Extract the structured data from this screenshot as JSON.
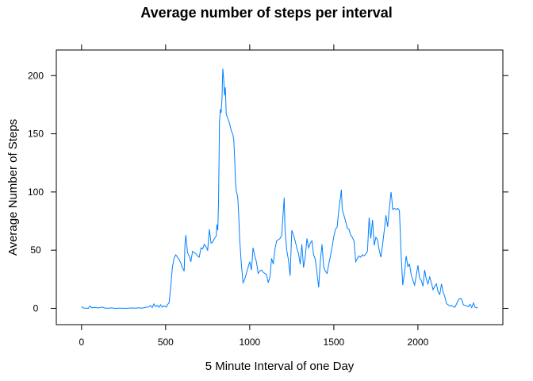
{
  "chart_data": {
    "type": "line",
    "title": "Average number of steps per interval",
    "xlabel": "5 Minute Interval of one Day",
    "ylabel": "Average Number of Steps",
    "xlim": [
      -150,
      2505
    ],
    "ylim": [
      -14,
      222
    ],
    "x_ticks": [
      0,
      500,
      1000,
      1500,
      2000
    ],
    "y_ticks": [
      0,
      50,
      100,
      150,
      200
    ],
    "x_tick_labels": [
      "0",
      "500",
      "1000",
      "1500",
      "2000"
    ],
    "y_tick_labels": [
      "0",
      "50",
      "100",
      "150",
      "200"
    ],
    "grid": false,
    "legend": "none",
    "line_color": "#0080ff",
    "series": [
      {
        "x": [
          0,
          10,
          20,
          30,
          40,
          50,
          60,
          80,
          100,
          120,
          140,
          160,
          180,
          200,
          220,
          240,
          260,
          280,
          300,
          320,
          340,
          360,
          380,
          400,
          410,
          420,
          430,
          440,
          450,
          460,
          470,
          480,
          490,
          500,
          505,
          510,
          520,
          530,
          540,
          550,
          560,
          570,
          580,
          590,
          600,
          610,
          615,
          620,
          630,
          640,
          650,
          660,
          670,
          680,
          690,
          700,
          710,
          720,
          730,
          740,
          750,
          760,
          770,
          780,
          790,
          800,
          805,
          810,
          815,
          820,
          825,
          830,
          835,
          840,
          845,
          850,
          855,
          860,
          870,
          880,
          890,
          900,
          905,
          910,
          915,
          920,
          925,
          930,
          935,
          940,
          950,
          960,
          970,
          980,
          990,
          1000,
          1010,
          1020,
          1030,
          1040,
          1050,
          1060,
          1070,
          1080,
          1090,
          1100,
          1110,
          1120,
          1130,
          1140,
          1150,
          1160,
          1170,
          1180,
          1190,
          1200,
          1205,
          1210,
          1220,
          1230,
          1240,
          1250,
          1260,
          1270,
          1280,
          1290,
          1300,
          1310,
          1320,
          1330,
          1340,
          1350,
          1360,
          1370,
          1380,
          1390,
          1400,
          1410,
          1420,
          1430,
          1440,
          1450,
          1460,
          1470,
          1480,
          1490,
          1500,
          1510,
          1520,
          1530,
          1540,
          1545,
          1550,
          1560,
          1570,
          1580,
          1590,
          1600,
          1610,
          1620,
          1630,
          1640,
          1650,
          1660,
          1670,
          1680,
          1690,
          1700,
          1710,
          1720,
          1730,
          1740,
          1750,
          1760,
          1770,
          1780,
          1790,
          1800,
          1810,
          1820,
          1830,
          1840,
          1845,
          1850,
          1860,
          1870,
          1880,
          1890,
          1900,
          1910,
          1920,
          1930,
          1940,
          1950,
          1960,
          1970,
          1980,
          1990,
          2000,
          2010,
          2020,
          2030,
          2040,
          2050,
          2060,
          2070,
          2080,
          2090,
          2100,
          2110,
          2120,
          2130,
          2140,
          2150,
          2160,
          2170,
          2180,
          2190,
          2200,
          2210,
          2220,
          2230,
          2240,
          2250,
          2260,
          2270,
          2280,
          2290,
          2300,
          2310,
          2320,
          2330,
          2340,
          2350,
          2355
        ],
        "y": [
          1.7,
          0.3,
          0.1,
          0.2,
          0.0,
          2.1,
          0.5,
          0.8,
          0.3,
          1.1,
          0.2,
          0.1,
          0.4,
          0.0,
          0.1,
          0.2,
          0.0,
          0.1,
          0.3,
          0.1,
          0.5,
          0.2,
          0.8,
          1.2,
          2.5,
          0.7,
          3.8,
          1.5,
          2.6,
          0.9,
          3.1,
          1.0,
          2.2,
          1.5,
          1.0,
          3.2,
          4.5,
          18.0,
          35.0,
          43.0,
          46.0,
          44.0,
          42.0,
          39.0,
          35.0,
          32.0,
          55.0,
          63.0,
          48.0,
          45.0,
          40.0,
          49.0,
          48.0,
          47.0,
          45.0,
          44.0,
          52.0,
          51.0,
          55.0,
          53.0,
          50.0,
          68.0,
          56.0,
          57.0,
          60.0,
          62.0,
          72.0,
          67.0,
          94.0,
          160.0,
          171.0,
          168.0,
          180.0,
          206.0,
          197.0,
          183.0,
          190.0,
          167.0,
          163.0,
          159.0,
          153.0,
          149.0,
          145.0,
          130.0,
          110.0,
          101.0,
          98.0,
          93.0,
          78.0,
          60.0,
          38.0,
          22.0,
          25.0,
          30.0,
          35.0,
          40.0,
          33.0,
          52.0,
          45.0,
          40.0,
          30.0,
          32.0,
          33.0,
          31.0,
          30.0,
          29.0,
          22.0,
          27.0,
          43.0,
          38.0,
          51.0,
          58.0,
          59.0,
          60.0,
          63.0,
          85.0,
          95.0,
          67.0,
          50.0,
          42.0,
          28.0,
          67.0,
          63.0,
          58.0,
          52.0,
          47.0,
          38.0,
          55.0,
          35.0,
          44.0,
          60.0,
          52.0,
          56.0,
          58.0,
          46.0,
          42.0,
          30.0,
          18.0,
          41.0,
          55.0,
          35.0,
          32.0,
          30.0,
          38.0,
          45.0,
          53.0,
          62.0,
          68.0,
          70.0,
          85.0,
          96.0,
          102.0,
          85.0,
          80.0,
          75.0,
          69.0,
          68.0,
          63.0,
          61.0,
          58.0,
          40.0,
          43.0,
          45.0,
          44.0,
          46.0,
          45.0,
          47.0,
          49.0,
          78.0,
          60.0,
          76.0,
          54.0,
          61.0,
          59.0,
          50.0,
          44.0,
          55.0,
          67.0,
          80.0,
          70.0,
          86.0,
          100.0,
          94.0,
          85.0,
          86.0,
          85.0,
          86.0,
          84.0,
          47.0,
          20.0,
          30.0,
          45.0,
          36.0,
          38.0,
          29.0,
          24.0,
          20.0,
          28.0,
          37.0,
          26.0,
          24.0,
          19.0,
          33.0,
          25.0,
          21.0,
          27.0,
          22.0,
          16.0,
          19.0,
          21.0,
          14.0,
          12.0,
          21.0,
          14.0,
          10.0,
          4.0,
          3.0,
          2.0,
          2.5,
          1.5,
          1.0,
          4.0,
          7.0,
          8.5,
          8.0,
          3.0,
          2.6,
          2.0,
          1.5,
          3.5,
          0.6,
          4.6,
          1.0,
          0.4,
          1.1
        ]
      }
    ]
  }
}
